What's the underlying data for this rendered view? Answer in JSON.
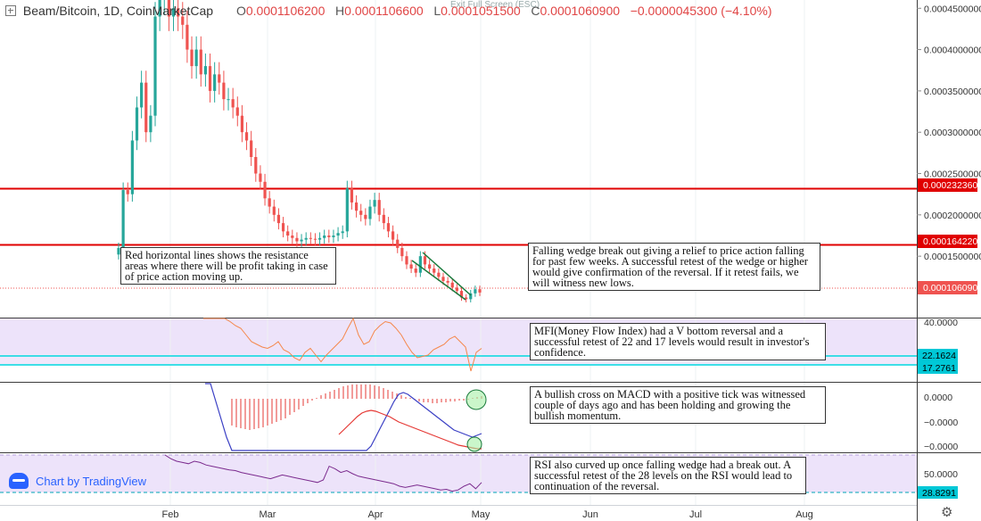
{
  "header": {
    "title": "Beam/Bitcoin, 1D, CoinMarketCap",
    "ohlc": {
      "o_label": "O",
      "o": "0.0001106200",
      "h_label": "H",
      "h": "0.0001106600",
      "l_label": "L",
      "l": "0.0001051500",
      "c_label": "C",
      "c": "0.0001060900",
      "change": "−0.0000045300 (−4.10%)"
    },
    "exit_fullscreen": "Exit Full Screen (ESC)"
  },
  "branding": {
    "chart_by": "Chart by TradingView"
  },
  "annotations": {
    "resistance": "Red horizontal lines shows the resistance areas where there will be profit taking in case of price action moving up.",
    "wedge": "Falling wedge break out giving a relief to price action falling for past few weeks. A successful retest of the wedge or higher would give confirmation of the reversal. If it retest fails, we will witness new lows.",
    "mfi": "MFI(Money Flow Index) had a V bottom reversal and a successful retest of 22 and 17 levels would result in investor's confidence.",
    "macd": "A bullish cross on MACD with a positive tick was witnessed couple of days ago and has been holding and growing the bullish momentum.",
    "rsi": "RSI also curved up once falling wedge had a break out. A successful retest of the 28 levels on the RSI would lead to continuation of the reversal."
  },
  "colors": {
    "up": "#26a69a",
    "down": "#ef5350",
    "resistance": "#e00000",
    "mfi_line": "#f5874a",
    "mfi_fill": "#ede3fa",
    "cyan": "#00d8e0",
    "macd_line": "#3a3fc4",
    "signal_line": "#e53935",
    "rsi_line": "#7b2b8e",
    "label_bg": "#00c8d7"
  },
  "chart_data": [
    {
      "type": "candlestick",
      "title": "Beam/Bitcoin, 1D, CoinMarketCap",
      "xaxis_ticks": [
        "Feb",
        "Mar",
        "Apr",
        "May",
        "Jun",
        "Jul",
        "Aug"
      ],
      "yaxis_ticks": [
        "0.0004500000",
        "0.0004000000",
        "0.0003500000",
        "0.0003000000",
        "0.0002500000",
        "0.0002000000",
        "0.0001500000"
      ],
      "ylim": [
        8e-05,
        0.00046
      ],
      "resistance_levels": [
        {
          "value": 0.00023236,
          "label": "0.0002323600"
        },
        {
          "value": 0.00016422,
          "label": "0.0001642200"
        }
      ],
      "last_price": {
        "value": 0.00010609,
        "label": "0.0001060900"
      },
      "close_series_approx": [
        0.00016,
        0.00023,
        0.000225,
        0.00029,
        0.00033,
        0.00036,
        0.0003,
        0.00032,
        0.00044,
        0.00046,
        0.00047,
        0.00044,
        0.00045,
        0.00044,
        0.00043,
        0.0004,
        0.00038,
        0.0004,
        0.00037,
        0.00038,
        0.00035,
        0.00037,
        0.00036,
        0.00034,
        0.00034,
        0.00033,
        0.00032,
        0.0003,
        0.00029,
        0.00027,
        0.00025,
        0.00024,
        0.00022,
        0.00021,
        0.0002,
        0.00019,
        0.00018,
        0.000175,
        0.000172,
        0.000168,
        0.00017,
        0.000172,
        0.000171,
        0.00017,
        0.000172,
        0.000175,
        0.000173,
        0.000175,
        0.000178,
        0.00018,
        0.000232,
        0.000215,
        0.000205,
        0.0002,
        0.000195,
        0.00021,
        0.000218,
        0.0002,
        0.00019,
        0.00018,
        0.00017,
        0.00016,
        0.00015,
        0.00014,
        0.000135,
        0.00013,
        0.00015,
        0.00014,
        0.000135,
        0.00013,
        0.000125,
        0.00012,
        0.000118,
        0.000112,
        0.000108,
        0.0001,
        9.8e-05,
        0.000105,
        0.00011,
        0.000106
      ]
    },
    {
      "type": "line",
      "name": "MFI",
      "yaxis_ticks": [
        "40.0000"
      ],
      "levels": [
        {
          "value": 22.1624,
          "label": "22.1624"
        },
        {
          "value": 17.2761,
          "label": "17.2761"
        }
      ],
      "values_approx": [
        70,
        65,
        60,
        58,
        55,
        45,
        42,
        40,
        35,
        30,
        28,
        26,
        25,
        27,
        30,
        24,
        22,
        18,
        16,
        22,
        25,
        20,
        15,
        20,
        24,
        28,
        32,
        40,
        50,
        35,
        28,
        30,
        38,
        42,
        45,
        44,
        40,
        35,
        28,
        22,
        18,
        19,
        20,
        24,
        26,
        28,
        32,
        34,
        30,
        26,
        8,
        22,
        25
      ]
    },
    {
      "type": "bar+line",
      "name": "MACD",
      "yaxis_ticks": [
        "0.0000",
        "−0.0000",
        "−0.0000"
      ],
      "histogram_approx": [
        -30,
        -32,
        -33,
        -34,
        -35,
        -34,
        -33,
        -32,
        -30,
        -28,
        -26,
        -24,
        -22,
        -18,
        -15,
        -12,
        -8,
        -5,
        -2,
        1,
        4,
        6,
        8,
        10,
        12,
        14,
        15,
        16,
        16,
        16,
        16,
        16,
        15,
        14,
        12,
        10,
        8,
        6,
        4,
        2,
        1,
        -1,
        -3,
        -4,
        -4,
        -5,
        -5,
        -4,
        -4,
        -3,
        -3,
        -2,
        -2,
        -1,
        1,
        2,
        3
      ],
      "macd_approx": [
        60,
        40,
        20,
        0,
        -20,
        -40,
        -55,
        -60,
        -62,
        -60,
        -58,
        -55,
        -50,
        -45,
        -40,
        -30,
        -20,
        -10,
        0,
        10,
        20,
        28,
        30,
        28,
        24,
        20,
        16,
        12,
        8,
        4,
        0,
        -4,
        -8,
        -12,
        -14,
        -16,
        -18,
        -20,
        -18,
        -16
      ],
      "signal_approx": [
        0,
        5,
        10,
        15,
        20,
        24,
        26,
        27,
        26,
        24,
        22,
        20,
        17,
        14,
        12,
        10,
        8,
        6,
        4,
        2,
        0,
        -2,
        -4,
        -6,
        -8,
        -10,
        -12,
        -13,
        -14,
        -15,
        -16,
        -16
      ]
    },
    {
      "type": "line",
      "name": "RSI",
      "yaxis_ticks": [
        "50.0000"
      ],
      "levels": [
        {
          "value": 28.8291,
          "label": "28.8291"
        }
      ],
      "values_approx": [
        80,
        74,
        70,
        68,
        66,
        70,
        68,
        64,
        62,
        60,
        58,
        56,
        55,
        52,
        50,
        48,
        46,
        44,
        42,
        45,
        48,
        46,
        44,
        42,
        40,
        38,
        36,
        40,
        62,
        58,
        52,
        55,
        50,
        46,
        44,
        42,
        40,
        38,
        36,
        34,
        30,
        28,
        30,
        32,
        30,
        28,
        26,
        24,
        25,
        22,
        24,
        30,
        34,
        26,
        36
      ]
    }
  ]
}
